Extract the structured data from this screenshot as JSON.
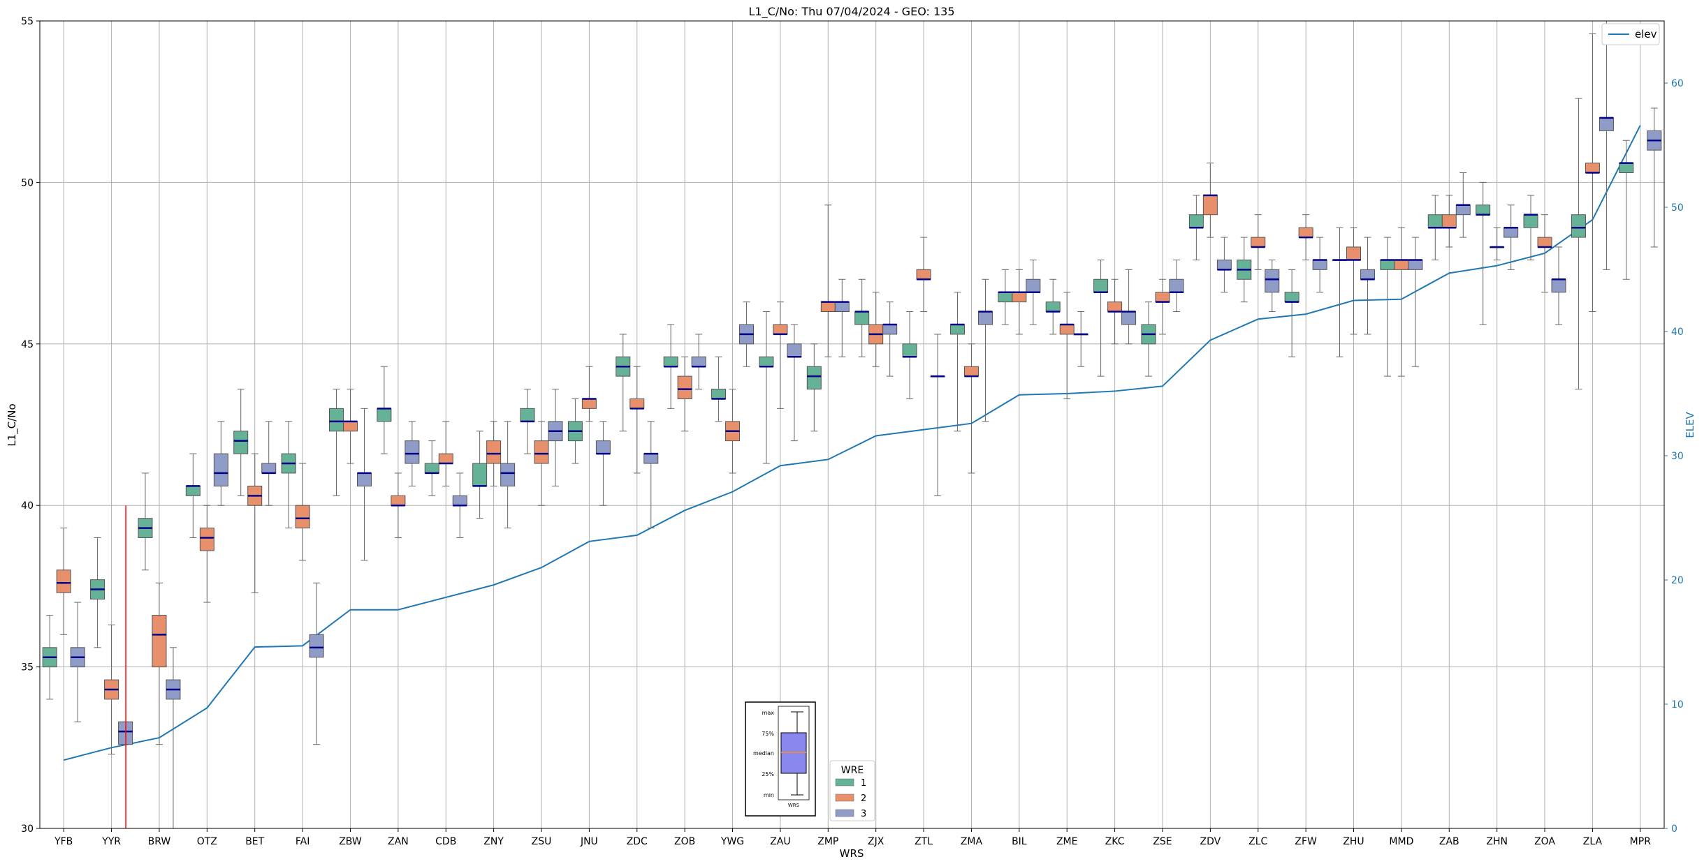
{
  "chart_data": {
    "type": "box",
    "title": "L1_C/No: Thu 07/04/2024 - GEO: 135",
    "xlabel": "WRS",
    "ylabel": "L1_C/No",
    "y2label": "ELEV",
    "ylim": [
      30,
      55
    ],
    "y2lim": [
      0,
      65
    ],
    "yticks": [
      30,
      35,
      40,
      45,
      50,
      55
    ],
    "y2ticks": [
      0,
      10,
      20,
      30,
      40,
      50,
      60
    ],
    "grid": true,
    "categories": [
      "YFB",
      "YYR",
      "BRW",
      "OTZ",
      "BET",
      "FAI",
      "ZBW",
      "ZAN",
      "CDB",
      "ZNY",
      "ZSU",
      "JNU",
      "ZDC",
      "ZOB",
      "YWG",
      "ZAU",
      "ZMP",
      "ZJX",
      "ZTL",
      "ZMA",
      "BIL",
      "ZME",
      "ZKC",
      "ZSE",
      "ZDV",
      "ZLC",
      "ZFW",
      "ZHU",
      "MMD",
      "ZAB",
      "ZHN",
      "ZOA",
      "ZLA",
      "MPR"
    ],
    "legend": {
      "title": "WRE",
      "placement": "bottom-center",
      "entries": [
        {
          "name": "1",
          "color": "#66b297"
        },
        {
          "name": "2",
          "color": "#e8906b"
        },
        {
          "name": "3",
          "color": "#8f9cc7"
        }
      ]
    },
    "line_legend": {
      "name": "elev",
      "color": "#1f77b4",
      "placement": "top-right"
    },
    "key": {
      "labels": [
        "max",
        "75%",
        "median",
        "25%",
        "min"
      ],
      "caption": "WRS"
    },
    "series": [
      {
        "name": "1",
        "color": "#66b297",
        "boxes": [
          {
            "cat": 0,
            "min": 34.0,
            "q1": 35.0,
            "med": 35.3,
            "q3": 35.6,
            "max": 36.6
          },
          {
            "cat": 1,
            "min": 35.6,
            "q1": 37.1,
            "med": 37.4,
            "q3": 37.7,
            "max": 39.0
          },
          {
            "cat": 2,
            "min": 38.0,
            "q1": 39.0,
            "med": 39.3,
            "q3": 39.6,
            "max": 41.0
          },
          {
            "cat": 3,
            "min": 39.0,
            "q1": 40.3,
            "med": 40.6,
            "q3": 40.6,
            "max": 41.6
          },
          {
            "cat": 4,
            "min": 40.3,
            "q1": 41.6,
            "med": 42.0,
            "q3": 42.3,
            "max": 43.6
          },
          {
            "cat": 5,
            "min": 39.3,
            "q1": 41.0,
            "med": 41.3,
            "q3": 41.6,
            "max": 42.6
          },
          {
            "cat": 6,
            "min": 40.3,
            "q1": 42.3,
            "med": 42.6,
            "q3": 43.0,
            "max": 43.6
          },
          {
            "cat": 7,
            "min": 41.6,
            "q1": 42.6,
            "med": 43.0,
            "q3": 43.0,
            "max": 44.3
          },
          {
            "cat": 8,
            "min": 40.3,
            "q1": 41.0,
            "med": 41.0,
            "q3": 41.3,
            "max": 42.0
          },
          {
            "cat": 9,
            "min": 39.6,
            "q1": 40.6,
            "med": 40.6,
            "q3": 41.3,
            "max": 42.3
          },
          {
            "cat": 10,
            "min": 41.6,
            "q1": 42.6,
            "med": 42.6,
            "q3": 43.0,
            "max": 43.6
          },
          {
            "cat": 11,
            "min": 41.3,
            "q1": 42.0,
            "med": 42.3,
            "q3": 42.6,
            "max": 43.3
          },
          {
            "cat": 12,
            "min": 42.3,
            "q1": 44.0,
            "med": 44.3,
            "q3": 44.6,
            "max": 45.3
          },
          {
            "cat": 13,
            "min": 43.0,
            "q1": 44.3,
            "med": 44.3,
            "q3": 44.6,
            "max": 45.6
          },
          {
            "cat": 14,
            "min": 42.6,
            "q1": 43.3,
            "med": 43.3,
            "q3": 43.6,
            "max": 44.6
          },
          {
            "cat": 15,
            "min": 41.3,
            "q1": 44.3,
            "med": 44.3,
            "q3": 44.6,
            "max": 46.0
          },
          {
            "cat": 16,
            "min": 42.3,
            "q1": 43.6,
            "med": 44.0,
            "q3": 44.3,
            "max": 45.0
          },
          {
            "cat": 17,
            "min": 44.6,
            "q1": 45.6,
            "med": 46.0,
            "q3": 46.0,
            "max": 47.0
          },
          {
            "cat": 18,
            "min": 43.3,
            "q1": 44.6,
            "med": 44.6,
            "q3": 45.0,
            "max": 46.0
          },
          {
            "cat": 19,
            "min": 42.3,
            "q1": 45.3,
            "med": 45.6,
            "q3": 45.6,
            "max": 46.6
          },
          {
            "cat": 20,
            "min": 45.6,
            "q1": 46.3,
            "med": 46.6,
            "q3": 46.6,
            "max": 47.3
          },
          {
            "cat": 21,
            "min": 45.3,
            "q1": 46.0,
            "med": 46.0,
            "q3": 46.3,
            "max": 47.0
          },
          {
            "cat": 22,
            "min": 44.0,
            "q1": 46.6,
            "med": 46.6,
            "q3": 47.0,
            "max": 47.6
          },
          {
            "cat": 23,
            "min": 44.0,
            "q1": 45.0,
            "med": 45.3,
            "q3": 45.6,
            "max": 46.3
          },
          {
            "cat": 24,
            "min": 47.6,
            "q1": 48.6,
            "med": 48.6,
            "q3": 49.0,
            "max": 49.6
          },
          {
            "cat": 25,
            "min": 46.3,
            "q1": 47.0,
            "med": 47.3,
            "q3": 47.6,
            "max": 48.3
          },
          {
            "cat": 26,
            "min": 44.6,
            "q1": 46.3,
            "med": 46.3,
            "q3": 46.6,
            "max": 47.3
          },
          {
            "cat": 27,
            "min": 44.6,
            "q1": 47.6,
            "med": 47.6,
            "q3": 47.6,
            "max": 48.6
          },
          {
            "cat": 28,
            "min": 44.0,
            "q1": 47.3,
            "med": 47.6,
            "q3": 47.6,
            "max": 48.3
          },
          {
            "cat": 29,
            "min": 47.6,
            "q1": 48.6,
            "med": 48.6,
            "q3": 49.0,
            "max": 49.6
          },
          {
            "cat": 30,
            "min": 45.6,
            "q1": 49.0,
            "med": 49.0,
            "q3": 49.3,
            "max": 50.0
          },
          {
            "cat": 31,
            "min": 47.6,
            "q1": 48.6,
            "med": 49.0,
            "q3": 49.0,
            "max": 49.6
          },
          {
            "cat": 32,
            "min": 43.6,
            "q1": 48.3,
            "med": 48.6,
            "q3": 49.0,
            "max": 52.6
          },
          {
            "cat": 33,
            "min": 47.0,
            "q1": 50.3,
            "med": 50.6,
            "q3": 50.6,
            "max": 51.3
          }
        ]
      },
      {
        "name": "2",
        "color": "#e8906b",
        "boxes": [
          {
            "cat": 0,
            "min": 36.0,
            "q1": 37.3,
            "med": 37.6,
            "q3": 38.0,
            "max": 39.3
          },
          {
            "cat": 1,
            "min": 32.3,
            "q1": 34.0,
            "med": 34.3,
            "q3": 34.6,
            "max": 36.3
          },
          {
            "cat": 2,
            "min": 32.6,
            "q1": 35.0,
            "med": 36.0,
            "q3": 36.6,
            "max": 37.6
          },
          {
            "cat": 3,
            "min": 37.0,
            "q1": 38.6,
            "med": 39.0,
            "q3": 39.3,
            "max": 40.0
          },
          {
            "cat": 4,
            "min": 37.3,
            "q1": 40.0,
            "med": 40.3,
            "q3": 40.6,
            "max": 41.6
          },
          {
            "cat": 5,
            "min": 38.3,
            "q1": 39.3,
            "med": 39.6,
            "q3": 40.0,
            "max": 41.3
          },
          {
            "cat": 6,
            "min": 41.3,
            "q1": 42.3,
            "med": 42.6,
            "q3": 42.6,
            "max": 43.6
          },
          {
            "cat": 7,
            "min": 39.0,
            "q1": 40.0,
            "med": 40.0,
            "q3": 40.3,
            "max": 41.0
          },
          {
            "cat": 8,
            "min": 40.6,
            "q1": 41.3,
            "med": 41.3,
            "q3": 41.6,
            "max": 42.6
          },
          {
            "cat": 9,
            "min": 40.6,
            "q1": 41.3,
            "med": 41.6,
            "q3": 42.0,
            "max": 42.6
          },
          {
            "cat": 10,
            "min": 40.0,
            "q1": 41.3,
            "med": 41.6,
            "q3": 42.0,
            "max": 42.6
          },
          {
            "cat": 11,
            "min": 42.6,
            "q1": 43.0,
            "med": 43.3,
            "q3": 43.3,
            "max": 44.3
          },
          {
            "cat": 12,
            "min": 41.0,
            "q1": 43.0,
            "med": 43.0,
            "q3": 43.3,
            "max": 44.3
          },
          {
            "cat": 13,
            "min": 42.3,
            "q1": 43.3,
            "med": 43.6,
            "q3": 44.0,
            "max": 44.6
          },
          {
            "cat": 14,
            "min": 41.0,
            "q1": 42.0,
            "med": 42.3,
            "q3": 42.6,
            "max": 43.6
          },
          {
            "cat": 15,
            "min": 43.0,
            "q1": 45.3,
            "med": 45.3,
            "q3": 45.6,
            "max": 46.3
          },
          {
            "cat": 16,
            "min": 44.6,
            "q1": 46.0,
            "med": 46.3,
            "q3": 46.3,
            "max": 49.3
          },
          {
            "cat": 17,
            "min": 44.3,
            "q1": 45.0,
            "med": 45.3,
            "q3": 45.6,
            "max": 46.6
          },
          {
            "cat": 18,
            "min": 46.0,
            "q1": 47.0,
            "med": 47.0,
            "q3": 47.3,
            "max": 48.3
          },
          {
            "cat": 19,
            "min": 41.0,
            "q1": 44.0,
            "med": 44.0,
            "q3": 44.3,
            "max": 45.0
          },
          {
            "cat": 20,
            "min": 45.3,
            "q1": 46.3,
            "med": 46.6,
            "q3": 46.6,
            "max": 47.3
          },
          {
            "cat": 21,
            "min": 43.3,
            "q1": 45.3,
            "med": 45.6,
            "q3": 45.6,
            "max": 46.6
          },
          {
            "cat": 22,
            "min": 45.0,
            "q1": 46.0,
            "med": 46.0,
            "q3": 46.3,
            "max": 47.0
          },
          {
            "cat": 23,
            "min": 45.3,
            "q1": 46.3,
            "med": 46.3,
            "q3": 46.6,
            "max": 47.0
          },
          {
            "cat": 24,
            "min": 48.3,
            "q1": 49.0,
            "med": 49.6,
            "q3": 49.6,
            "max": 50.6
          },
          {
            "cat": 25,
            "min": 47.3,
            "q1": 48.0,
            "med": 48.0,
            "q3": 48.3,
            "max": 49.0
          },
          {
            "cat": 26,
            "min": 47.6,
            "q1": 48.3,
            "med": 48.3,
            "q3": 48.6,
            "max": 49.0
          },
          {
            "cat": 27,
            "min": 45.3,
            "q1": 47.6,
            "med": 47.6,
            "q3": 48.0,
            "max": 48.6
          },
          {
            "cat": 28,
            "min": 44.0,
            "q1": 47.3,
            "med": 47.6,
            "q3": 47.6,
            "max": 48.6
          },
          {
            "cat": 29,
            "min": 48.0,
            "q1": 48.6,
            "med": 48.6,
            "q3": 49.0,
            "max": 49.6
          },
          {
            "cat": 30,
            "min": 47.6,
            "q1": 48.0,
            "med": 48.0,
            "q3": 48.0,
            "max": 48.6
          },
          {
            "cat": 31,
            "min": 46.6,
            "q1": 48.0,
            "med": 48.0,
            "q3": 48.3,
            "max": 49.0
          },
          {
            "cat": 32,
            "min": 46.0,
            "q1": 50.3,
            "med": 50.3,
            "q3": 50.6,
            "max": 54.6
          },
          {
            "cat": 33,
            "min": null,
            "q1": null,
            "med": null,
            "q3": null,
            "max": null
          }
        ]
      },
      {
        "name": "3",
        "color": "#8f9cc7",
        "boxes": [
          {
            "cat": 0,
            "min": 33.3,
            "q1": 35.0,
            "med": 35.3,
            "q3": 35.6,
            "max": 37.0
          },
          {
            "cat": 1,
            "min": 32.6,
            "q1": 32.6,
            "med": 33.0,
            "q3": 33.3,
            "max": 33.3
          },
          {
            "cat": 2,
            "min": 30.0,
            "q1": 34.0,
            "med": 34.3,
            "q3": 34.6,
            "max": 35.6
          },
          {
            "cat": 3,
            "min": 40.0,
            "q1": 40.6,
            "med": 41.0,
            "q3": 41.6,
            "max": 42.6
          },
          {
            "cat": 4,
            "min": 40.0,
            "q1": 41.0,
            "med": 41.0,
            "q3": 41.3,
            "max": 42.6
          },
          {
            "cat": 5,
            "min": 32.6,
            "q1": 35.3,
            "med": 35.6,
            "q3": 36.0,
            "max": 37.6
          },
          {
            "cat": 6,
            "min": 38.3,
            "q1": 40.6,
            "med": 41.0,
            "q3": 41.0,
            "max": 43.0
          },
          {
            "cat": 7,
            "min": 40.6,
            "q1": 41.3,
            "med": 41.6,
            "q3": 42.0,
            "max": 42.6
          },
          {
            "cat": 8,
            "min": 39.0,
            "q1": 40.0,
            "med": 40.0,
            "q3": 40.3,
            "max": 41.0
          },
          {
            "cat": 9,
            "min": 39.3,
            "q1": 40.6,
            "med": 41.0,
            "q3": 41.3,
            "max": 42.6
          },
          {
            "cat": 10,
            "min": 40.6,
            "q1": 42.0,
            "med": 42.3,
            "q3": 42.6,
            "max": 43.6
          },
          {
            "cat": 11,
            "min": 40.0,
            "q1": 41.6,
            "med": 41.6,
            "q3": 42.0,
            "max": 42.6
          },
          {
            "cat": 12,
            "min": 39.3,
            "q1": 41.3,
            "med": 41.6,
            "q3": 41.6,
            "max": 42.6
          },
          {
            "cat": 13,
            "min": 43.6,
            "q1": 44.3,
            "med": 44.3,
            "q3": 44.6,
            "max": 45.3
          },
          {
            "cat": 14,
            "min": 44.3,
            "q1": 45.0,
            "med": 45.3,
            "q3": 45.6,
            "max": 46.3
          },
          {
            "cat": 15,
            "min": 42.0,
            "q1": 44.6,
            "med": 44.6,
            "q3": 45.0,
            "max": 45.6
          },
          {
            "cat": 16,
            "min": 44.6,
            "q1": 46.0,
            "med": 46.3,
            "q3": 46.3,
            "max": 47.0
          },
          {
            "cat": 17,
            "min": 44.0,
            "q1": 45.3,
            "med": 45.6,
            "q3": 45.6,
            "max": 46.3
          },
          {
            "cat": 18,
            "min": 40.3,
            "q1": 44.0,
            "med": 44.0,
            "q3": 44.0,
            "max": 45.3
          },
          {
            "cat": 19,
            "min": 42.6,
            "q1": 45.6,
            "med": 46.0,
            "q3": 46.0,
            "max": 47.0
          },
          {
            "cat": 20,
            "min": 45.6,
            "q1": 46.6,
            "med": 46.6,
            "q3": 47.0,
            "max": 47.6
          },
          {
            "cat": 21,
            "min": 44.3,
            "q1": 45.3,
            "med": 45.3,
            "q3": 45.3,
            "max": 46.0
          },
          {
            "cat": 22,
            "min": 45.0,
            "q1": 45.6,
            "med": 46.0,
            "q3": 46.0,
            "max": 47.3
          },
          {
            "cat": 23,
            "min": 46.0,
            "q1": 46.6,
            "med": 46.6,
            "q3": 47.0,
            "max": 47.6
          },
          {
            "cat": 24,
            "min": 46.6,
            "q1": 47.3,
            "med": 47.3,
            "q3": 47.6,
            "max": 48.3
          },
          {
            "cat": 25,
            "min": 46.0,
            "q1": 46.6,
            "med": 47.0,
            "q3": 47.3,
            "max": 47.6
          },
          {
            "cat": 26,
            "min": 46.6,
            "q1": 47.3,
            "med": 47.6,
            "q3": 47.6,
            "max": 48.3
          },
          {
            "cat": 27,
            "min": 45.3,
            "q1": 47.0,
            "med": 47.0,
            "q3": 47.3,
            "max": 48.3
          },
          {
            "cat": 28,
            "min": 44.3,
            "q1": 47.3,
            "med": 47.6,
            "q3": 47.6,
            "max": 48.3
          },
          {
            "cat": 29,
            "min": 48.3,
            "q1": 49.0,
            "med": 49.3,
            "q3": 49.3,
            "max": 50.3
          },
          {
            "cat": 30,
            "min": 47.3,
            "q1": 48.3,
            "med": 48.6,
            "q3": 48.6,
            "max": 49.3
          },
          {
            "cat": 31,
            "min": 45.6,
            "q1": 46.6,
            "med": 47.0,
            "q3": 47.0,
            "max": 48.0
          },
          {
            "cat": 32,
            "min": 47.3,
            "q1": 51.6,
            "med": 52.0,
            "q3": 52.0,
            "max": 55.0
          },
          {
            "cat": 33,
            "min": 48.0,
            "q1": 51.0,
            "med": 51.3,
            "q3": 51.6,
            "max": 52.3
          }
        ]
      }
    ],
    "elev": {
      "name": "elev",
      "color": "#1f77b4",
      "values": [
        5.5,
        6.5,
        7.3,
        9.7,
        14.6,
        14.7,
        17.6,
        17.6,
        18.6,
        19.6,
        21.0,
        23.1,
        23.6,
        25.6,
        27.1,
        29.2,
        29.7,
        31.6,
        32.1,
        32.6,
        34.9,
        35.0,
        35.2,
        35.6,
        39.3,
        41.0,
        41.4,
        42.5,
        42.6,
        44.7,
        45.3,
        46.3,
        49.0,
        56.6
      ]
    },
    "annotation": {
      "type": "vertical-line",
      "x": 1.3,
      "y_from": 30,
      "y_to": 40,
      "color": "#ff0000"
    }
  }
}
